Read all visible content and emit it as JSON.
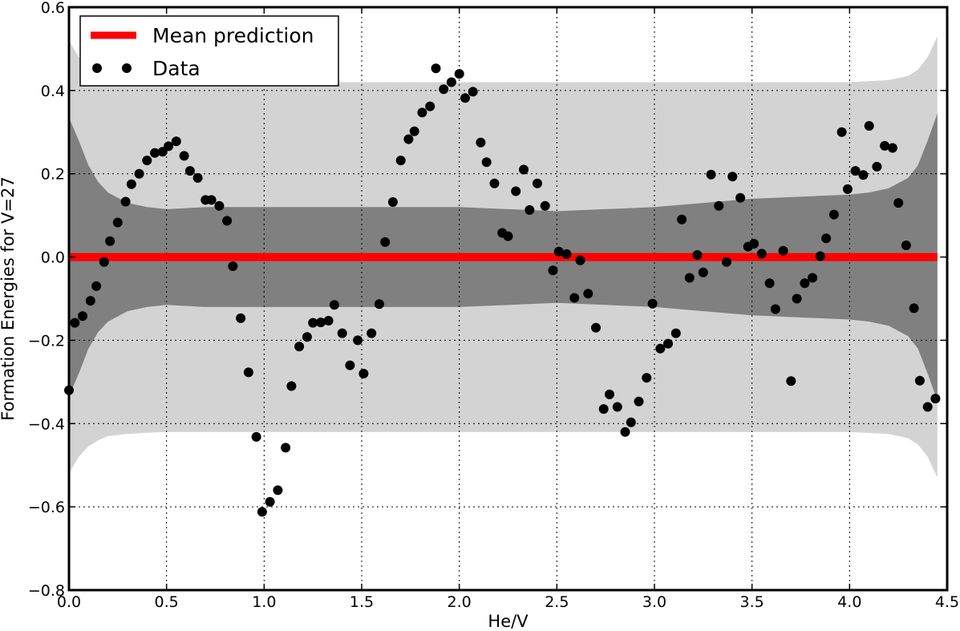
{
  "chart_data": {
    "type": "scatter",
    "xlabel": "He/V",
    "ylabel": "Formation Energies for V=27",
    "xlim": [
      0.0,
      4.5
    ],
    "ylim": [
      -0.8,
      0.6
    ],
    "xticks": [
      0.0,
      0.5,
      1.0,
      1.5,
      2.0,
      2.5,
      3.0,
      3.5,
      4.0,
      4.5
    ],
    "yticks": [
      -0.8,
      -0.6,
      -0.4,
      -0.2,
      0.0,
      0.2,
      0.4,
      0.6
    ],
    "xtick_labels": [
      "0.0",
      "0.5",
      "1.0",
      "1.5",
      "2.0",
      "2.5",
      "3.0",
      "3.5",
      "4.0",
      "4.5"
    ],
    "ytick_labels": [
      "−0.8",
      "−0.6",
      "−0.4",
      "−0.2",
      "0.0",
      "0.2",
      "0.4",
      "0.6"
    ],
    "grid": true,
    "legend_position": "top-left",
    "legend": [
      {
        "label": "Mean prediction",
        "kind": "line",
        "color": "#ff0000"
      },
      {
        "label": "Data",
        "kind": "marker",
        "color": "#000000"
      }
    ],
    "mean_prediction": {
      "name": "Mean prediction",
      "x": [
        0.0,
        4.45
      ],
      "y": [
        0.0,
        0.0
      ],
      "color": "#ff0000"
    },
    "bands": [
      {
        "color": "#d3d3d3",
        "x": [
          0.0,
          0.05,
          0.1,
          0.15,
          0.2,
          0.3,
          0.4,
          0.5,
          0.7,
          1.0,
          1.5,
          2.0,
          2.5,
          3.0,
          3.5,
          4.0,
          4.2,
          4.3,
          4.35,
          4.4,
          4.45
        ],
        "upper": [
          0.52,
          0.48,
          0.455,
          0.44,
          0.43,
          0.425,
          0.422,
          0.42,
          0.42,
          0.42,
          0.42,
          0.42,
          0.42,
          0.42,
          0.42,
          0.42,
          0.425,
          0.435,
          0.45,
          0.48,
          0.53
        ],
        "lower": [
          -0.52,
          -0.48,
          -0.455,
          -0.44,
          -0.43,
          -0.425,
          -0.422,
          -0.42,
          -0.42,
          -0.42,
          -0.42,
          -0.42,
          -0.42,
          -0.42,
          -0.42,
          -0.42,
          -0.425,
          -0.435,
          -0.45,
          -0.48,
          -0.53
        ]
      },
      {
        "color": "#808080",
        "x": [
          0.0,
          0.05,
          0.1,
          0.15,
          0.2,
          0.3,
          0.4,
          0.5,
          0.7,
          1.0,
          1.5,
          2.0,
          2.5,
          3.0,
          3.5,
          4.0,
          4.1,
          4.2,
          4.3,
          4.35,
          4.4,
          4.45
        ],
        "upper": [
          0.335,
          0.28,
          0.22,
          0.18,
          0.155,
          0.13,
          0.12,
          0.115,
          0.12,
          0.12,
          0.12,
          0.12,
          0.11,
          0.12,
          0.14,
          0.15,
          0.155,
          0.165,
          0.19,
          0.22,
          0.28,
          0.345
        ],
        "lower": [
          -0.335,
          -0.28,
          -0.22,
          -0.18,
          -0.155,
          -0.13,
          -0.12,
          -0.115,
          -0.12,
          -0.12,
          -0.12,
          -0.12,
          -0.11,
          -0.12,
          -0.14,
          -0.15,
          -0.155,
          -0.165,
          -0.19,
          -0.22,
          -0.28,
          -0.345
        ]
      }
    ],
    "series": [
      {
        "name": "Data",
        "color": "#000000",
        "x": [
          0.0,
          0.03,
          0.07,
          0.11,
          0.14,
          0.18,
          0.21,
          0.25,
          0.29,
          0.32,
          0.36,
          0.4,
          0.44,
          0.48,
          0.51,
          0.55,
          0.59,
          0.62,
          0.66,
          0.7,
          0.73,
          0.77,
          0.81,
          0.84,
          0.88,
          0.92,
          0.96,
          0.99,
          1.03,
          1.07,
          1.11,
          1.14,
          1.18,
          1.22,
          1.25,
          1.29,
          1.33,
          1.36,
          1.4,
          1.44,
          1.48,
          1.51,
          1.55,
          1.59,
          1.62,
          1.66,
          1.7,
          1.74,
          1.77,
          1.81,
          1.85,
          1.88,
          1.92,
          1.96,
          2.0,
          2.03,
          2.07,
          2.11,
          2.14,
          2.18,
          2.22,
          2.25,
          2.29,
          2.33,
          2.36,
          2.4,
          2.44,
          2.48,
          2.51,
          2.55,
          2.59,
          2.62,
          2.66,
          2.7,
          2.74,
          2.77,
          2.81,
          2.85,
          2.88,
          2.92,
          2.96,
          2.99,
          3.03,
          3.07,
          3.11,
          3.14,
          3.18,
          3.22,
          3.25,
          3.29,
          3.33,
          3.37,
          3.4,
          3.44,
          3.48,
          3.51,
          3.55,
          3.59,
          3.62,
          3.66,
          3.7,
          3.73,
          3.77,
          3.81,
          3.85,
          3.88,
          3.92,
          3.96,
          3.99,
          4.03,
          4.07,
          4.1,
          4.14,
          4.18,
          4.22,
          4.25,
          4.29,
          4.33,
          4.36,
          4.4,
          4.44
        ],
        "y": [
          -0.32,
          -0.158,
          -0.142,
          -0.105,
          -0.07,
          -0.012,
          0.038,
          0.083,
          0.133,
          0.175,
          0.2,
          0.232,
          0.25,
          0.253,
          0.266,
          0.278,
          0.243,
          0.207,
          0.19,
          0.137,
          0.137,
          0.123,
          0.087,
          -0.022,
          -0.147,
          -0.277,
          -0.432,
          -0.612,
          -0.588,
          -0.56,
          -0.458,
          -0.31,
          -0.215,
          -0.192,
          -0.158,
          -0.157,
          -0.153,
          -0.115,
          -0.183,
          -0.26,
          -0.2,
          -0.28,
          -0.183,
          -0.113,
          0.036,
          0.132,
          0.232,
          0.283,
          0.302,
          0.347,
          0.362,
          0.453,
          0.403,
          0.42,
          0.44,
          0.382,
          0.397,
          0.275,
          0.228,
          0.177,
          0.058,
          0.05,
          0.158,
          0.21,
          0.113,
          0.177,
          0.123,
          -0.032,
          0.013,
          0.007,
          -0.098,
          -0.008,
          -0.088,
          -0.17,
          -0.365,
          -0.33,
          -0.36,
          -0.42,
          -0.397,
          -0.347,
          -0.29,
          -0.112,
          -0.22,
          -0.208,
          -0.183,
          0.09,
          -0.05,
          0.005,
          -0.037,
          0.198,
          0.123,
          -0.012,
          0.193,
          0.142,
          0.025,
          0.032,
          0.008,
          -0.063,
          -0.125,
          0.015,
          -0.298,
          -0.1,
          -0.063,
          -0.05,
          0.002,
          0.045,
          0.102,
          0.3,
          0.163,
          0.207,
          0.197,
          0.315,
          0.217,
          0.267,
          0.262,
          0.13,
          0.028,
          -0.123,
          -0.297,
          -0.36,
          -0.34
        ]
      }
    ]
  }
}
